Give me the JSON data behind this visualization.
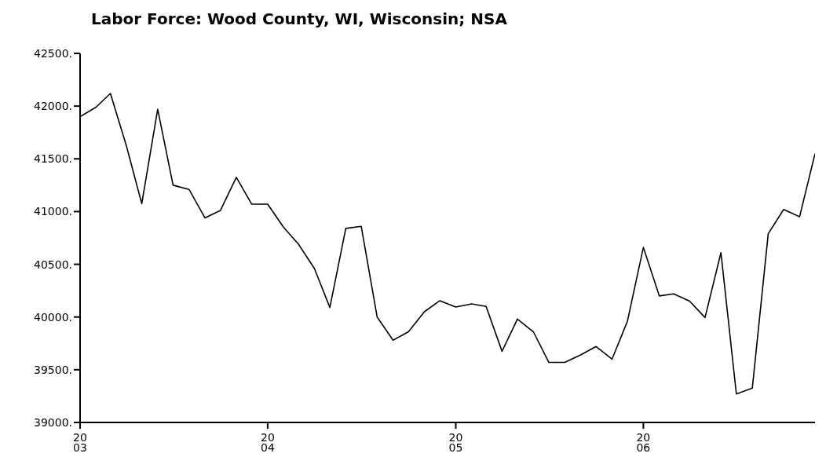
{
  "chart_data": {
    "type": "line",
    "title": "Labor Force: Wood County, WI, Wisconsin; NSA",
    "x": [
      "2003-01",
      "2003-02",
      "2003-03",
      "2003-04",
      "2003-05",
      "2003-06",
      "2003-07",
      "2003-08",
      "2003-09",
      "2003-10",
      "2003-11",
      "2003-12",
      "2004-01",
      "2004-02",
      "2004-03",
      "2004-04",
      "2004-05",
      "2004-06",
      "2004-07",
      "2004-08",
      "2004-09",
      "2004-10",
      "2004-11",
      "2004-12",
      "2005-01",
      "2005-02",
      "2005-03",
      "2005-04",
      "2005-05",
      "2005-06",
      "2005-07",
      "2005-08",
      "2005-09",
      "2005-10",
      "2005-11",
      "2005-12",
      "2006-01",
      "2006-02",
      "2006-03",
      "2006-04",
      "2006-05",
      "2006-06",
      "2006-07",
      "2006-08",
      "2006-09",
      "2006-10",
      "2006-11",
      "2006-12"
    ],
    "series": [
      {
        "color": "#000000",
        "values": [
          41900,
          41990,
          42120,
          41625,
          41075,
          41970,
          41250,
          41210,
          40940,
          41010,
          41325,
          41070,
          41070,
          40850,
          40690,
          40460,
          40090,
          40840,
          40860,
          40000,
          39780,
          39860,
          40050,
          40155,
          40095,
          40125,
          40100,
          39675,
          39980,
          39860,
          39570,
          39570,
          39640,
          39720,
          39600,
          39960,
          40660,
          40200,
          40220,
          40150,
          39995,
          40610,
          39270,
          39325,
          40790,
          41020,
          40950,
          41550
        ]
      }
    ],
    "xlim": [
      "2003-01",
      "2006-12"
    ],
    "xticks": [
      {
        "value": "2003-01",
        "label": "20\n03"
      },
      {
        "value": "2004-01",
        "label": "20\n04"
      },
      {
        "value": "2005-01",
        "label": "20\n05"
      },
      {
        "value": "2006-01",
        "label": "20\n06"
      }
    ],
    "ylim": [
      39000,
      42500
    ],
    "yticks": [
      {
        "value": 39000,
        "label": "39000."
      },
      {
        "value": 39500,
        "label": "39500."
      },
      {
        "value": 40000,
        "label": "40000."
      },
      {
        "value": 40500,
        "label": "40500."
      },
      {
        "value": 41000,
        "label": "41000."
      },
      {
        "value": 41500,
        "label": "41500."
      },
      {
        "value": 42000,
        "label": "42000."
      },
      {
        "value": 42500,
        "label": "42500."
      }
    ],
    "grid": false,
    "legend": false,
    "marker": "none",
    "line_style": "solid"
  }
}
